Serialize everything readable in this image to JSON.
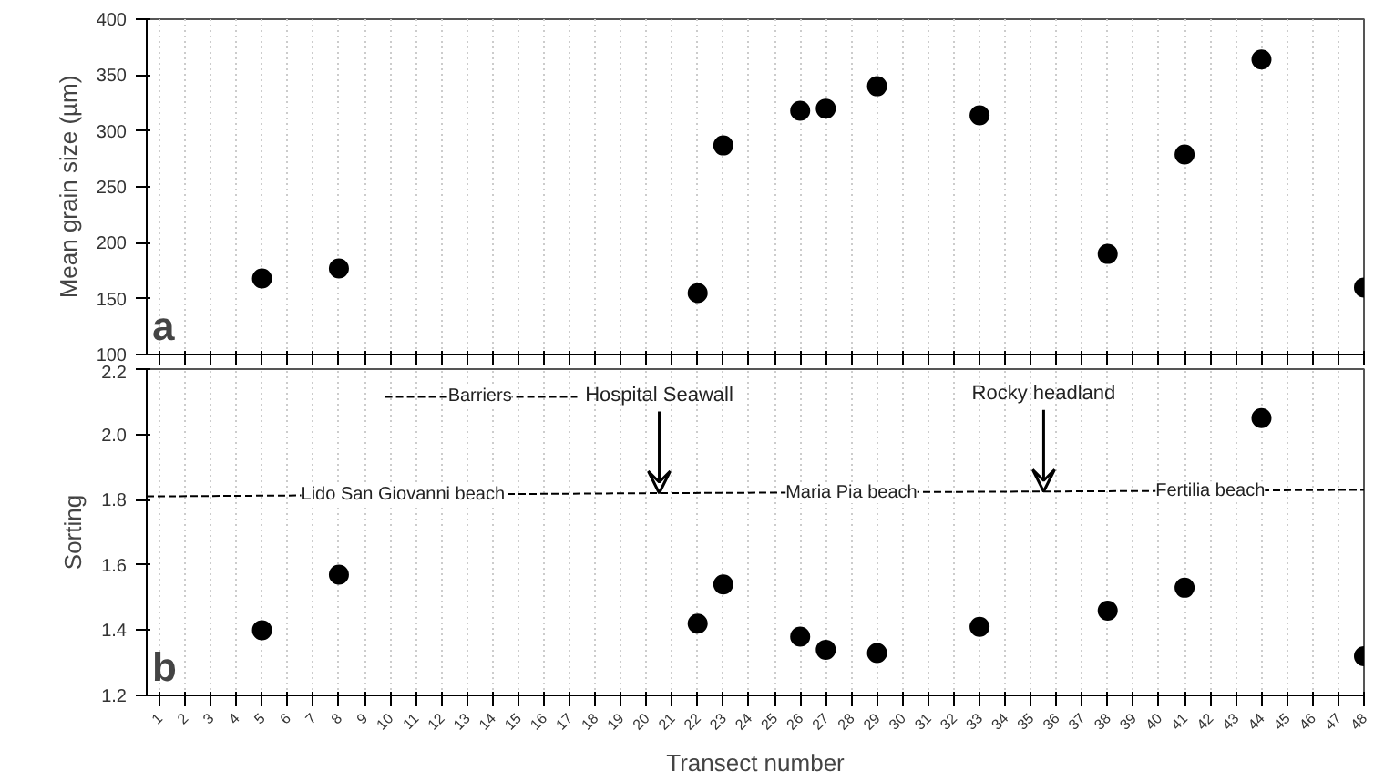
{
  "chart_data": [
    {
      "type": "scatter",
      "ylabel": "Mean grain size (µm)",
      "annotations": [
        "a"
      ],
      "x": [
        5,
        8,
        22,
        23,
        26,
        27,
        29,
        33,
        38,
        41,
        44,
        48
      ],
      "series": [
        {
          "color": "#000000",
          "values": [
            168,
            177,
            155,
            287,
            318,
            320,
            340,
            314,
            190,
            279,
            364,
            160
          ]
        }
      ],
      "xlim": [
        0.5,
        48
      ],
      "xticks": [
        1,
        2,
        3,
        4,
        5,
        6,
        7,
        8,
        9,
        10,
        11,
        12,
        13,
        14,
        15,
        16,
        17,
        18,
        19,
        20,
        21,
        22,
        23,
        24,
        25,
        26,
        27,
        28,
        29,
        30,
        31,
        32,
        33,
        34,
        35,
        36,
        37,
        38,
        39,
        40,
        41,
        42,
        43,
        44,
        45,
        46,
        47,
        48
      ],
      "ylim": [
        100,
        400
      ],
      "yticks": [
        100,
        150,
        200,
        250,
        300,
        350,
        400
      ],
      "tick_labels": "y",
      "grid": "x",
      "marker": "circle"
    },
    {
      "type": "scatter",
      "xlabel": "Transect number",
      "ylabel": "Sorting",
      "annotations": [
        "b",
        {
          "text": "Lido San Giovanni beach",
          "x": 10.5,
          "y": 1.815
        },
        {
          "text": "Maria Pia beach",
          "x": 28,
          "y": 1.82
        },
        {
          "text": "Fertilia beach",
          "x": 42,
          "y": 1.825
        },
        {
          "text": "Barriers",
          "x": 13.5,
          "y": 2.115
        },
        {
          "text": "Hospital Seawall",
          "x": 20.5,
          "y": 1.82
        },
        {
          "text": "Rocky headland",
          "x": 35.5,
          "y": 1.825
        }
      ],
      "x": [
        5,
        8,
        22,
        23,
        26,
        27,
        29,
        33,
        38,
        41,
        44,
        48
      ],
      "series": [
        {
          "color": "#000000",
          "values": [
            1.4,
            1.57,
            1.42,
            1.54,
            1.38,
            1.34,
            1.33,
            1.41,
            1.46,
            1.53,
            2.05,
            1.32
          ]
        },
        {
          "type": "line",
          "color": "#000000",
          "line_style": "dashed",
          "marker": "none",
          "x": [
            0.5,
            20.5,
            35.5,
            48
          ],
          "values": [
            1.81,
            1.82,
            1.825,
            1.83
          ]
        },
        {
          "type": "line",
          "color": "#000000",
          "line_style": "dashed",
          "marker": "none",
          "x": [
            9.8,
            17.3
          ],
          "values": [
            2.115,
            2.115
          ]
        }
      ],
      "xlim": [
        0.5,
        48
      ],
      "xticks": [
        1,
        2,
        3,
        4,
        5,
        6,
        7,
        8,
        9,
        10,
        11,
        12,
        13,
        14,
        15,
        16,
        17,
        18,
        19,
        20,
        21,
        22,
        23,
        24,
        25,
        26,
        27,
        28,
        29,
        30,
        31,
        32,
        33,
        34,
        35,
        36,
        37,
        38,
        39,
        40,
        41,
        42,
        43,
        44,
        45,
        46,
        47,
        48
      ],
      "ylim": [
        1.2,
        2.2
      ],
      "yticks": [
        1.2,
        1.4,
        1.6,
        1.8,
        {
          "value": 2,
          "label": "2.0"
        },
        2.2
      ],
      "grid": "x",
      "marker": "circle"
    }
  ]
}
